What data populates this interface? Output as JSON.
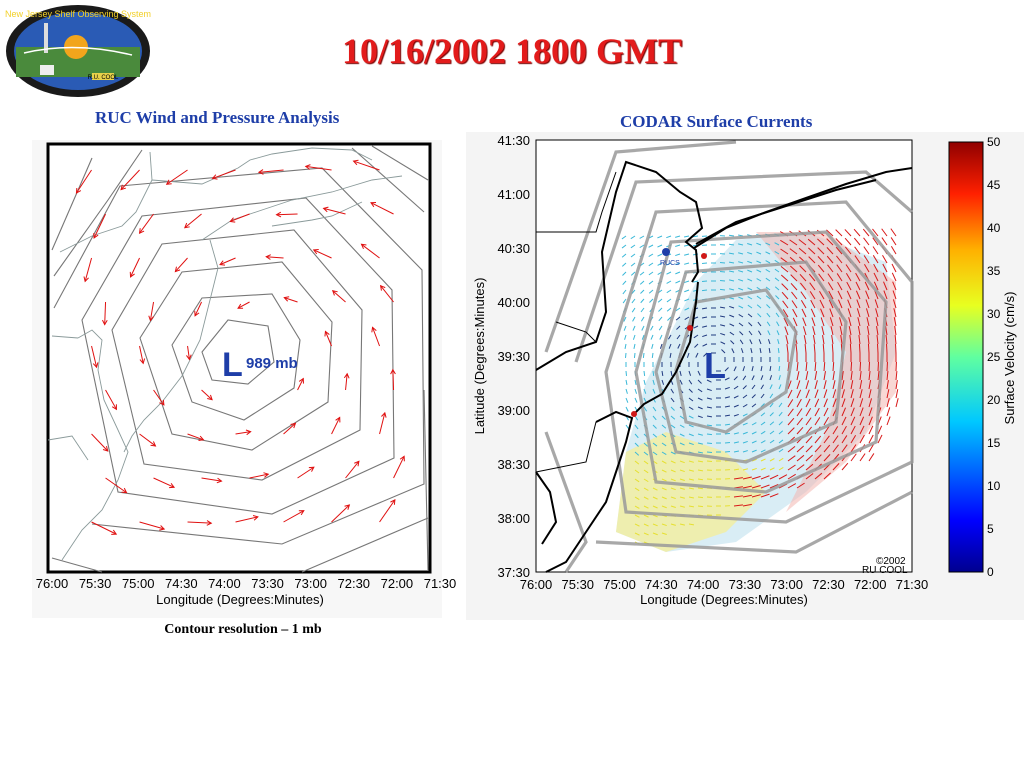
{
  "title": "10/16/2002 1800 GMT",
  "logo": {
    "ring_text": "New Jersey Shelf Observing System",
    "badge": "R.U. COOL"
  },
  "left_panel": {
    "title": "RUC Wind and Pressure Analysis",
    "low_symbol": "L",
    "pressure_label": "989 mb",
    "x_ticks": [
      "76:00",
      "75:30",
      "75:00",
      "74:30",
      "74:00",
      "73:30",
      "73:00",
      "72:30",
      "72:00",
      "71:30"
    ],
    "x_label": "Longitude (Degrees:Minutes)",
    "caption": "Contour resolution – 1 mb"
  },
  "right_panel": {
    "title": "CODAR Surface Currents",
    "low_symbol": "L",
    "x_ticks": [
      "76:00",
      "75:30",
      "75:00",
      "74:30",
      "74:00",
      "73:30",
      "73:00",
      "72:30",
      "72:00",
      "71:30"
    ],
    "y_ticks": [
      "41:30",
      "41:00",
      "40:30",
      "40:00",
      "39:30",
      "39:00",
      "38:30",
      "38:00",
      "37:30"
    ],
    "x_label": "Longitude (Degrees:Minutes)",
    "y_label": "Latitude (Degrees:Minutes)",
    "station_label": "RUCS",
    "copyright": "©2002",
    "credit": "RU COOL",
    "colorbar": {
      "label": "Surface Velocity (cm/s)",
      "ticks": [
        "50",
        "45",
        "40",
        "35",
        "30",
        "25",
        "20",
        "15",
        "10",
        "5",
        "0"
      ],
      "range": [
        0,
        50
      ]
    }
  },
  "colors": {
    "title": "#e31b1b",
    "panel_title": "#1e3ea8",
    "low": "#1e3ea8",
    "wind_arrow": "#e01010"
  }
}
